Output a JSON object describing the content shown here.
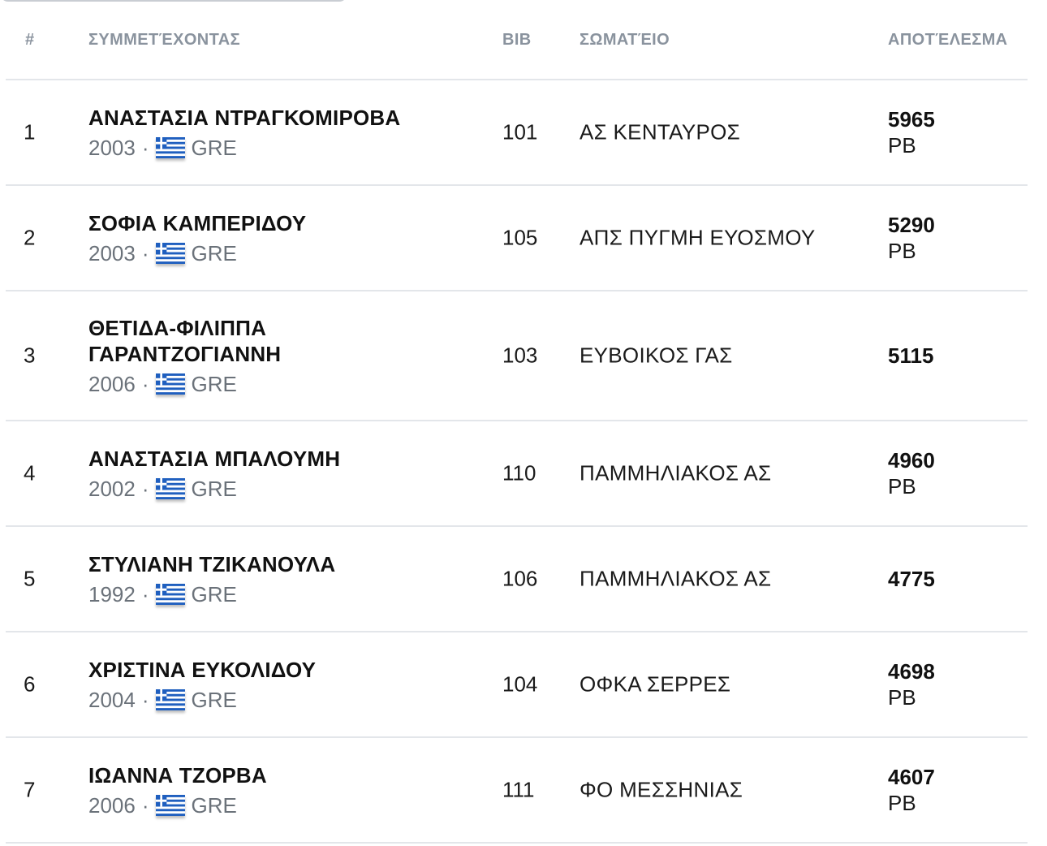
{
  "table": {
    "headers": {
      "rank": "#",
      "athlete": "ΣΥΜΜΕΤΈΧΟΝΤΑΣ",
      "bib": "BIB",
      "club": "ΣΩΜΑΤΈΙΟ",
      "result": "ΑΠΟΤΈΛΕΣΜΑ"
    },
    "rows": [
      {
        "rank": "1",
        "name": "ΑΝΑΣΤΑΣΙΑ ΝΤΡΑΓΚΟΜΙΡΟΒΑ",
        "year": "2003",
        "country": "GRE",
        "bib": "101",
        "club": "ΑΣ ΚΕΝΤΑΥΡΟΣ",
        "result": "5965",
        "badge": "PB"
      },
      {
        "rank": "2",
        "name": "ΣΟΦΙΑ ΚΑΜΠΕΡΙΔΟΥ",
        "year": "2003",
        "country": "GRE",
        "bib": "105",
        "club": "ΑΠΣ ΠΥΓΜΗ ΕΥΟΣΜΟΥ",
        "result": "5290",
        "badge": "PB"
      },
      {
        "rank": "3",
        "name": "ΘΕΤΙΔΑ-ΦΙΛΙΠΠΑ ΓΑΡΑΝΤΖΟΓΙΑΝΝΗ",
        "year": "2006",
        "country": "GRE",
        "bib": "103",
        "club": "ΕΥΒΟΙΚΟΣ ΓΑΣ",
        "result": "5115",
        "badge": ""
      },
      {
        "rank": "4",
        "name": "ΑΝΑΣΤΑΣΙΑ ΜΠΑΛΟΥΜΗ",
        "year": "2002",
        "country": "GRE",
        "bib": "110",
        "club": "ΠΑΜΜΗΛΙΑΚΟΣ ΑΣ",
        "result": "4960",
        "badge": "PB"
      },
      {
        "rank": "5",
        "name": "ΣΤΥΛΙΑΝΗ ΤΖΙΚΑΝΟΥΛΑ",
        "year": "1992",
        "country": "GRE",
        "bib": "106",
        "club": "ΠΑΜΜΗΛΙΑΚΟΣ ΑΣ",
        "result": "4775",
        "badge": ""
      },
      {
        "rank": "6",
        "name": "ΧΡΙΣΤΙΝΑ ΕΥΚΟΛΙΔΟΥ",
        "year": "2004",
        "country": "GRE",
        "bib": "104",
        "club": "ΟΦΚΑ ΣΕΡΡΕΣ",
        "result": "4698",
        "badge": "PB"
      },
      {
        "rank": "7",
        "name": "ΙΩΑΝΝΑ ΤΖΟΡΒΑ",
        "year": "2006",
        "country": "GRE",
        "bib": "111",
        "club": "ΦΟ ΜΕΣΣΗΝΙΑΣ",
        "result": "4607",
        "badge": "PB"
      }
    ],
    "separator": "·",
    "flag_icon": "greece-flag-icon",
    "colors": {
      "flag_blue": "#1f5fbf",
      "header_text": "#8a939e",
      "meta_text": "#6b727a",
      "divider": "#e3e6ea"
    }
  }
}
